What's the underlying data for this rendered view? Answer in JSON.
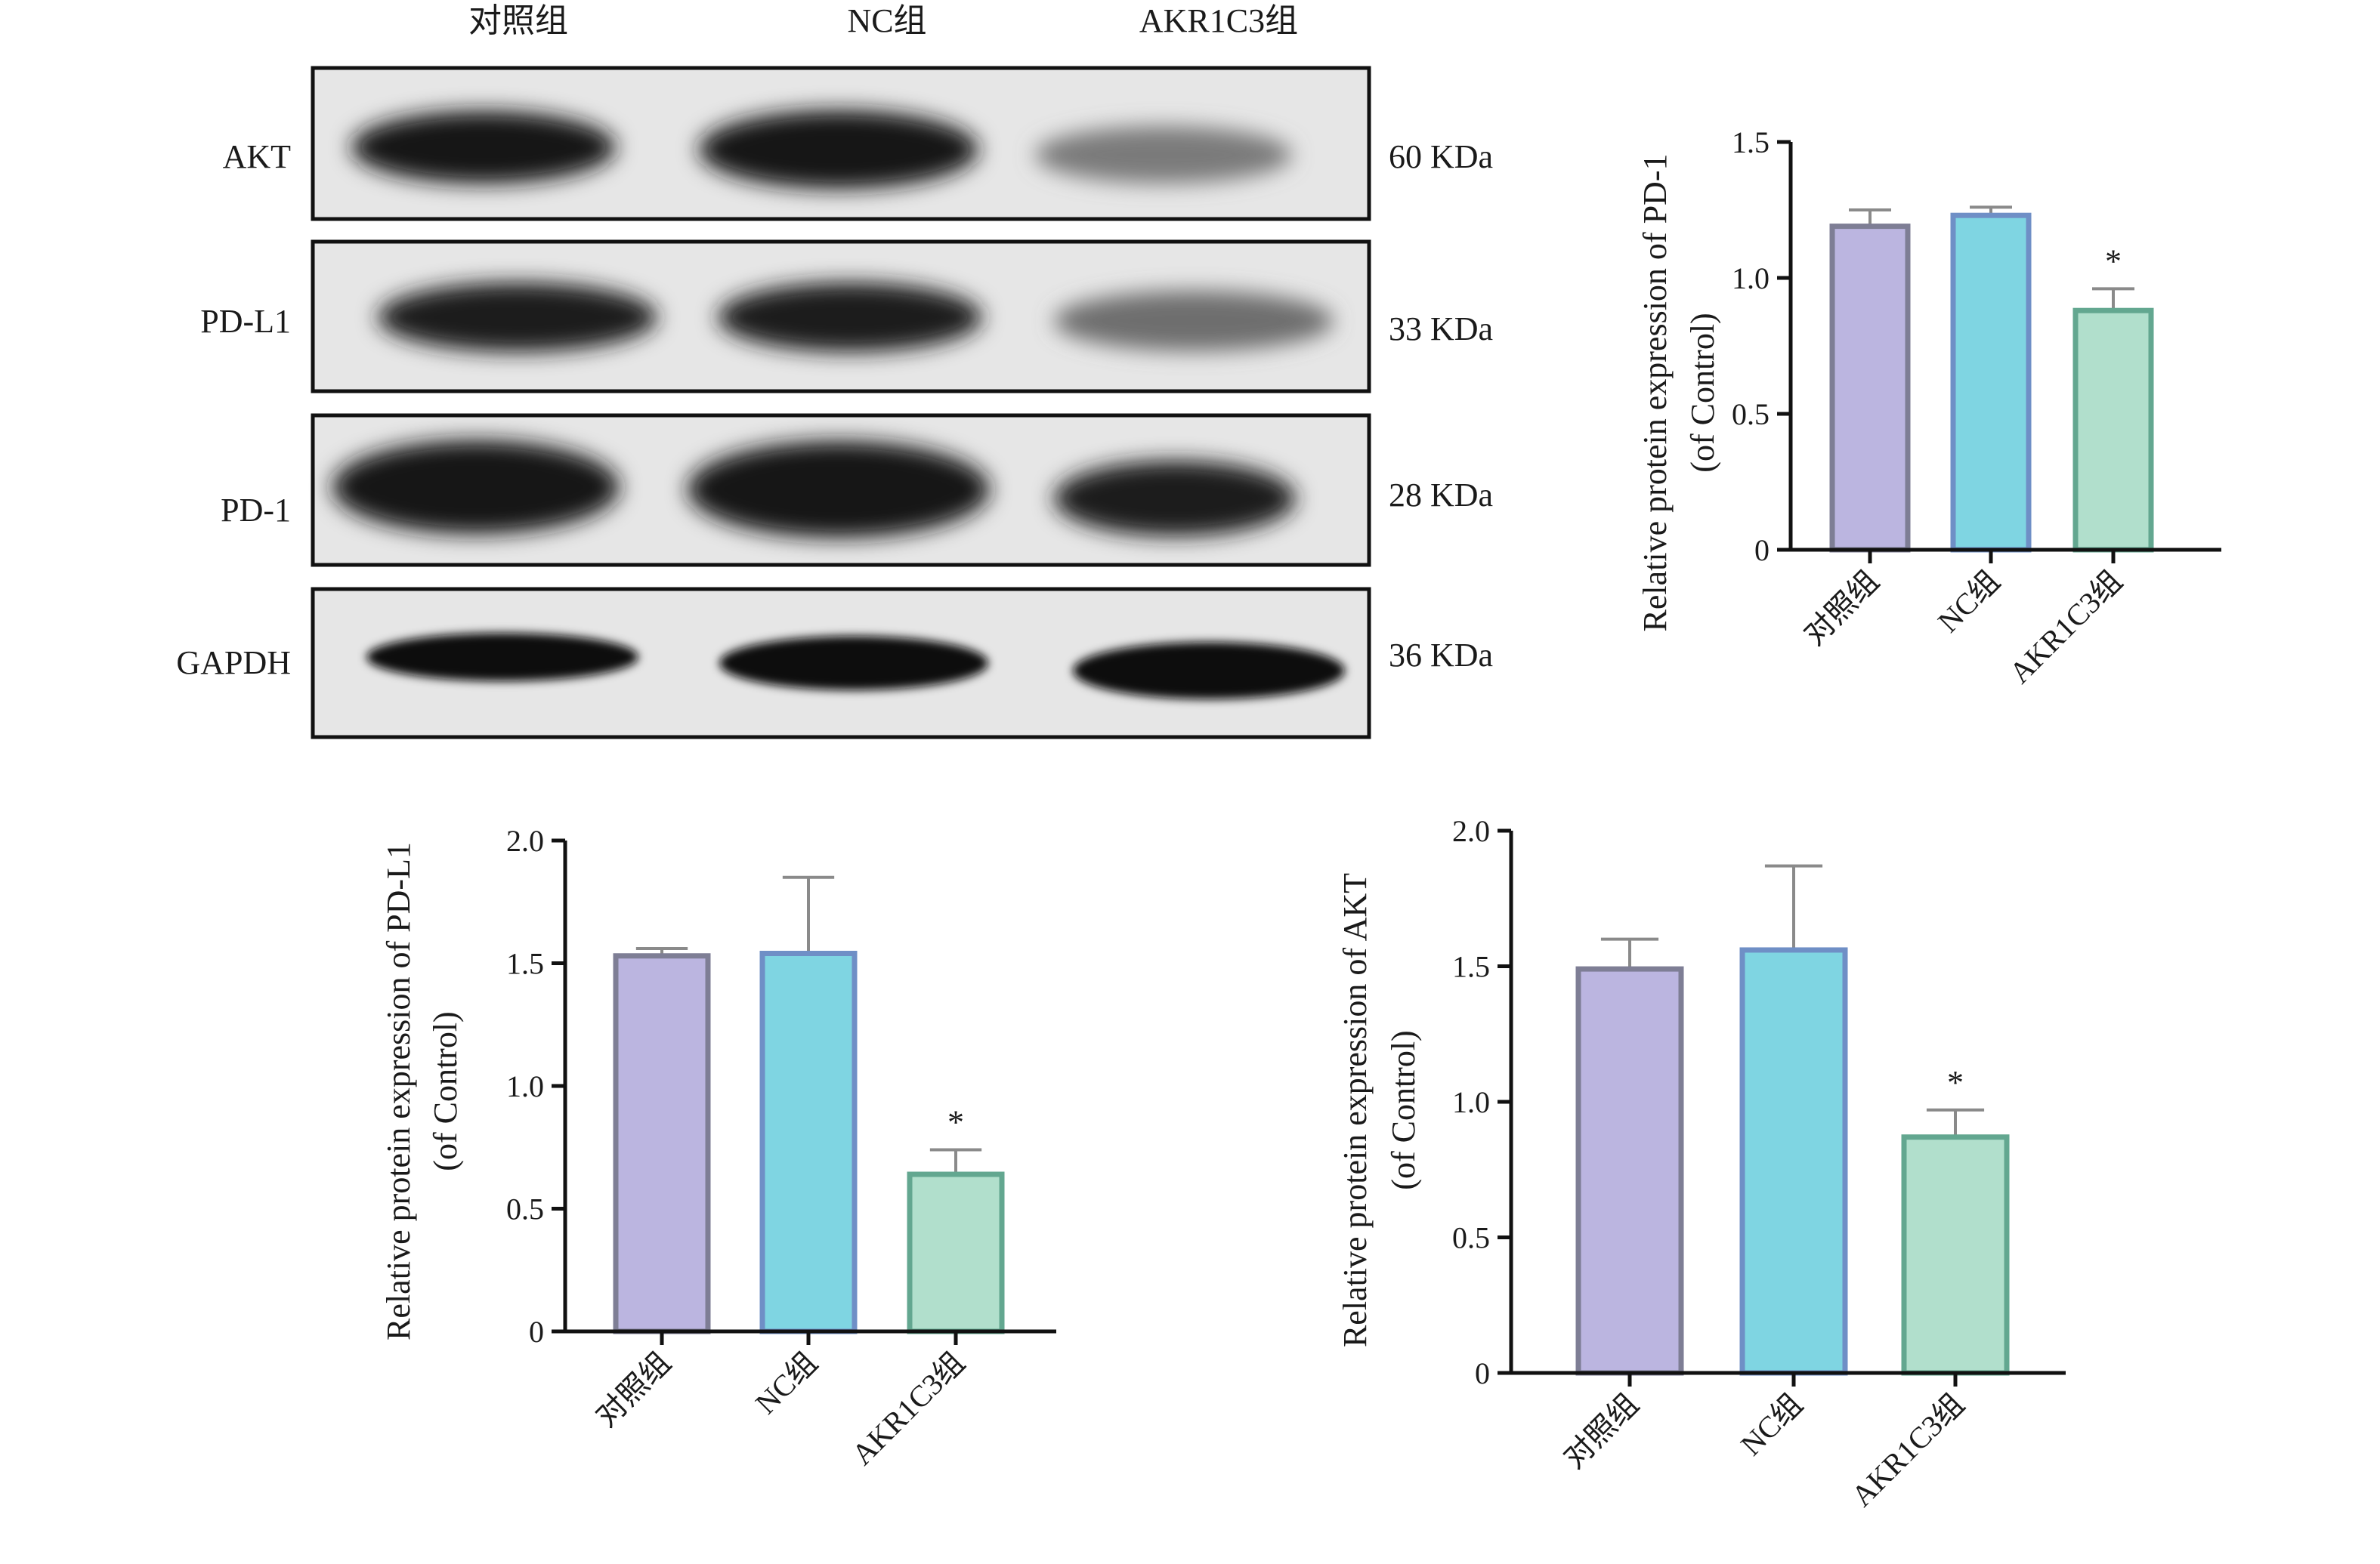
{
  "western_blot": {
    "lane_labels": [
      "对照组",
      "NC组",
      "AKR1C3组"
    ],
    "rows": [
      {
        "protein": "AKT",
        "size": "60 KDa"
      },
      {
        "protein": "PD-L1",
        "size": "33 KDa"
      },
      {
        "protein": "PD-1",
        "size": "28 KDa"
      },
      {
        "protein": "GAPDH",
        "size": "36 KDa"
      }
    ]
  },
  "chart_data": [
    {
      "type": "bar",
      "categories": [
        "对照组",
        "NC组",
        "AKR1C3组"
      ],
      "values": [
        1.19,
        1.23,
        0.88
      ],
      "errors": [
        0.06,
        0.03,
        0.08
      ],
      "annotations": [
        "",
        "",
        "*"
      ],
      "ylabel": "Relative protein expression of  PD-1",
      "ylabel2": "(of Control)",
      "ylim": [
        0,
        1.5
      ],
      "yticks": [
        0,
        0.5,
        1.0,
        1.5
      ],
      "ytick_labels": [
        "0",
        "0.5",
        "1.0",
        "1.5"
      ],
      "colors": [
        "#bbb5e0",
        "#7fd5e2",
        "#b1dfcc"
      ],
      "edge_colors": [
        "#7e7e95",
        "#6f8fc6",
        "#63a790"
      ]
    },
    {
      "type": "bar",
      "categories": [
        "对照组",
        "NC组",
        "AKR1C3组"
      ],
      "values": [
        1.53,
        1.54,
        0.64
      ],
      "errors": [
        0.03,
        0.31,
        0.1
      ],
      "annotations": [
        "",
        "",
        "*"
      ],
      "ylabel": "Relative protein expression of  PD-L1",
      "ylabel2": "(of Control)",
      "ylim": [
        0,
        2.0
      ],
      "yticks": [
        0,
        0.5,
        1.0,
        1.5,
        2.0
      ],
      "ytick_labels": [
        "0",
        "0.5",
        "1.0",
        "1.5",
        "2.0"
      ],
      "colors": [
        "#bbb5e0",
        "#7fd5e2",
        "#b1dfcc"
      ],
      "edge_colors": [
        "#7e7e95",
        "#6f8fc6",
        "#63a790"
      ]
    },
    {
      "type": "bar",
      "categories": [
        "对照组",
        "NC组",
        "AKR1C3组"
      ],
      "values": [
        1.49,
        1.56,
        0.87
      ],
      "errors": [
        0.11,
        0.31,
        0.1
      ],
      "annotations": [
        "",
        "",
        "*"
      ],
      "ylabel": "Relative protein expression of AKT",
      "ylabel2": "(of Control)",
      "ylim": [
        0,
        2.0
      ],
      "yticks": [
        0,
        0.5,
        1.0,
        1.5,
        2.0
      ],
      "ytick_labels": [
        "0",
        "0.5",
        "1.0",
        "1.5",
        "2.0"
      ],
      "colors": [
        "#bbb5e0",
        "#7fd5e2",
        "#b1dfcc"
      ],
      "edge_colors": [
        "#7e7e95",
        "#6f8fc6",
        "#63a790"
      ]
    }
  ]
}
